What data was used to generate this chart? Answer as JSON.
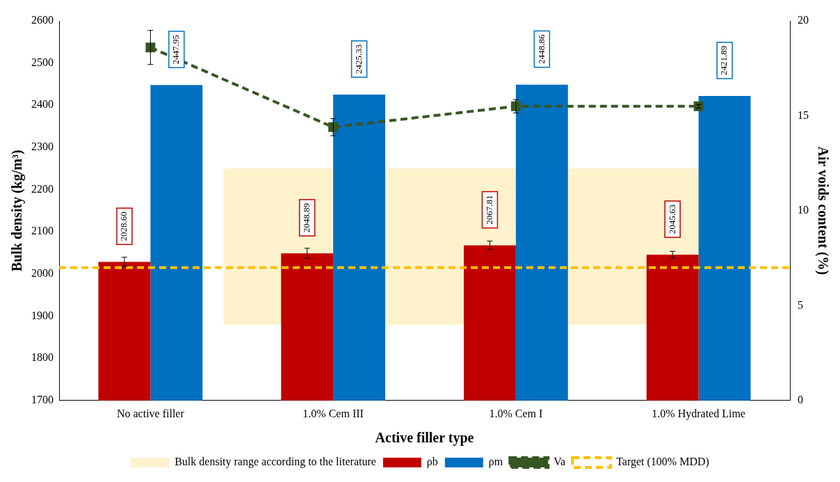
{
  "chart_data": {
    "type": "bar",
    "xlabel": "Active filler type",
    "ylabel": "Bulk density (kg/m³)",
    "y2label": "Air voids content (%)",
    "categories": [
      "No active filler",
      "1.0% Cem III",
      "1.0% Cem I",
      "1.0% Hydrated Lime"
    ],
    "series": [
      {
        "name": "ρb",
        "color": "#c00000",
        "values": [
          2028.6,
          2048.89,
          2067.81,
          2045.63
        ],
        "errors": [
          11,
          12,
          10,
          8
        ],
        "value_labels": [
          "2028.60",
          "2048.89",
          "2067.81",
          "2045.63"
        ]
      },
      {
        "name": "ρm",
        "color": "#0070c0",
        "values": [
          2447.95,
          2425.33,
          2448.86,
          2421.89
        ],
        "value_labels": [
          "2447.95",
          "2425.33",
          "2448.86",
          "2421.89"
        ]
      },
      {
        "name": "Va",
        "type": "line",
        "axis": "y2",
        "color": "#375623",
        "marker": "square",
        "line_style": "dashed",
        "values": [
          18.6,
          14.4,
          15.5,
          15.5
        ],
        "errors": [
          0.9,
          0.45,
          0.35,
          0.1
        ]
      }
    ],
    "ylim": [
      1700,
      2600
    ],
    "yticks": [
      1700,
      1800,
      1900,
      2000,
      2100,
      2200,
      2300,
      2400,
      2500,
      2600
    ],
    "y2lim": [
      0,
      20
    ],
    "y2ticks": [
      0,
      5,
      10,
      15,
      20
    ],
    "bands": [
      {
        "axis": "y",
        "from": 1880,
        "to": 2250,
        "label": "Bulk density range according to the literature",
        "color": "#fff2cc"
      }
    ],
    "ref_lines": [
      {
        "axis": "y",
        "value": 2015,
        "label": "Target (100% MDD)",
        "color": "#ffc000",
        "line_style": "dashed"
      }
    ],
    "grid": false,
    "legend": "bottom"
  }
}
